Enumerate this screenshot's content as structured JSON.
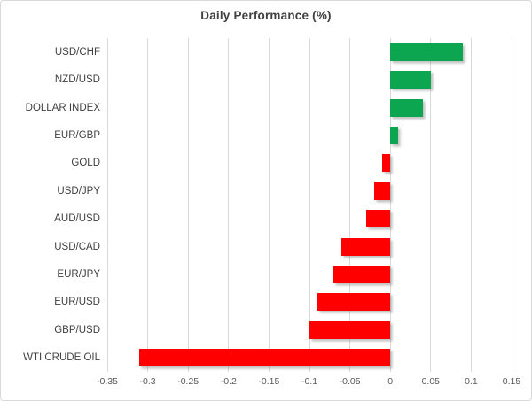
{
  "chart": {
    "title": "Daily Performance (%)"
  },
  "chart_data": {
    "type": "bar",
    "orientation": "horizontal",
    "title": "Daily Performance (%)",
    "categories": [
      "USD/CHF",
      "NZD/USD",
      "DOLLAR INDEX",
      "EUR/GBP",
      "GOLD",
      "USD/JPY",
      "AUD/USD",
      "USD/CAD",
      "EUR/JPY",
      "EUR/USD",
      "GBP/USD",
      "WTI CRUDE OIL"
    ],
    "values": [
      0.09,
      0.05,
      0.04,
      0.01,
      -0.01,
      -0.02,
      -0.03,
      -0.06,
      -0.07,
      -0.09,
      -0.1,
      -0.31
    ],
    "xlabel": "",
    "ylabel": "",
    "xlim": [
      -0.35,
      0.15
    ],
    "x_ticks": [
      -0.35,
      -0.3,
      -0.25,
      -0.2,
      -0.15,
      -0.1,
      -0.05,
      0,
      0.05,
      0.1,
      0.15
    ],
    "x_tick_labels": [
      "-0.35",
      "-0.3",
      "-0.25",
      "-0.2",
      "-0.15",
      "-0.1",
      "-0.05",
      "0",
      "0.05",
      "0.1",
      "0.15"
    ],
    "grid": true,
    "legend": null,
    "colors": {
      "positive_bar": "#0BA64F",
      "negative_bar": "#FF0000",
      "gridline": "#D9D9D9",
      "title_text": "#404040",
      "category_text": "#404040",
      "axis_tick_text": "#595959",
      "chart_border": "#D9D9D9",
      "background": "#FFFFFF"
    }
  }
}
